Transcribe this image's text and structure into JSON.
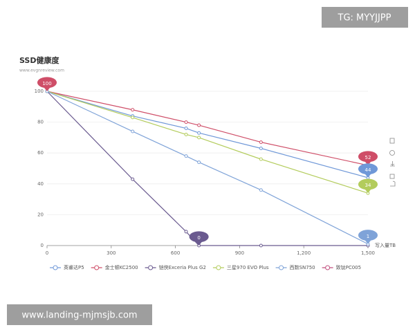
{
  "watermarks": [
    "TG: MYYJJPP",
    "www.landing-mjmsjb.com"
  ],
  "chart_data": {
    "type": "line",
    "title": "SSD健康度",
    "subtitle": "www.evgnreview.com",
    "x_label": "写入量TB",
    "x": [
      0,
      400,
      650,
      710,
      1000,
      1500
    ],
    "series": [
      {
        "name": "英睿达P5",
        "color": "#6f98d8",
        "values": [
          100,
          84,
          76,
          73,
          63,
          44
        ]
      },
      {
        "name": "金士顿KC2500",
        "color": "#cf4e68",
        "values": [
          100,
          88,
          80,
          78,
          67,
          52
        ]
      },
      {
        "name": "铠侠Exceria Plus G2",
        "color": "#6a5a8f",
        "values": [
          100,
          43,
          9,
          0,
          0,
          0
        ]
      },
      {
        "name": "三星970 EVO Plus",
        "color": "#b3cc5c",
        "values": [
          100,
          83,
          72,
          70,
          56,
          34
        ]
      },
      {
        "name": "西数SN750",
        "color": "#7fa3d8",
        "values": [
          100,
          74,
          58,
          54,
          36,
          1
        ]
      },
      {
        "name": "致钛PC005",
        "color": "#c24f7d",
        "values": [
          null,
          null,
          null,
          null,
          null,
          null
        ]
      }
    ],
    "xlim": [
      0,
      1500
    ],
    "xticks": [
      0,
      300,
      600,
      900,
      {
        "value": 1200,
        "label": "1,200"
      },
      {
        "value": 1500,
        "label": "1,500"
      }
    ],
    "ylim": [
      0,
      100
    ],
    "yticks": [
      0,
      20,
      40,
      60,
      80,
      100
    ],
    "grid": true
  }
}
